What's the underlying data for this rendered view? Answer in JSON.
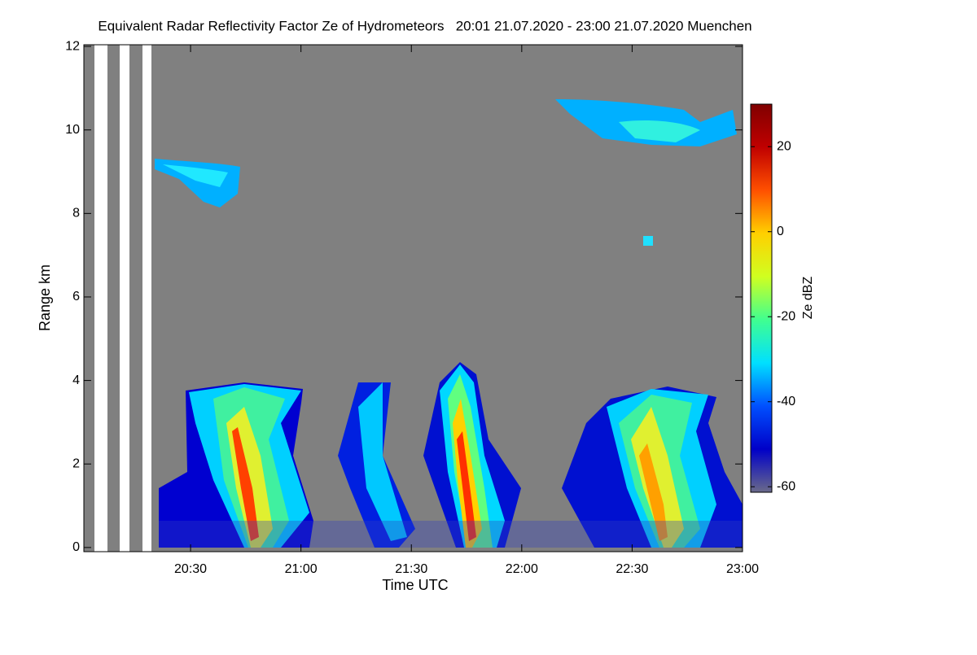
{
  "chart_data": {
    "type": "heatmap",
    "title": "Equivalent Radar Reflectivity Factor Ze of Hydrometeors   20:01 21.07.2020 - 23:00 21.07.2020 Muenchen",
    "xlabel": "Time UTC",
    "ylabel": "Range km",
    "xlim": [
      1201,
      1380
    ],
    "xticks": [
      {
        "value": 1230,
        "label": "20:30"
      },
      {
        "value": 1260,
        "label": "21:00"
      },
      {
        "value": 1290,
        "label": "21:30"
      },
      {
        "value": 1320,
        "label": "22:00"
      },
      {
        "value": 1350,
        "label": "22:30"
      },
      {
        "value": 1380,
        "label": "23:00"
      }
    ],
    "ylim": [
      -0.1,
      12.04
    ],
    "yticks": [
      0,
      2,
      4,
      6,
      8,
      10,
      12
    ],
    "colorbar": {
      "label": "Ze dBZ",
      "zlim": [
        -61.3,
        30
      ],
      "ticks": [
        20,
        0,
        -20,
        -40,
        -60
      ],
      "colors": [
        "#6a6a8a",
        "#0000c8",
        "#0050ff",
        "#00e0ff",
        "#40ff90",
        "#d0ff20",
        "#ffd000",
        "#ff5000",
        "#c00000",
        "#800000"
      ]
    }
  }
}
